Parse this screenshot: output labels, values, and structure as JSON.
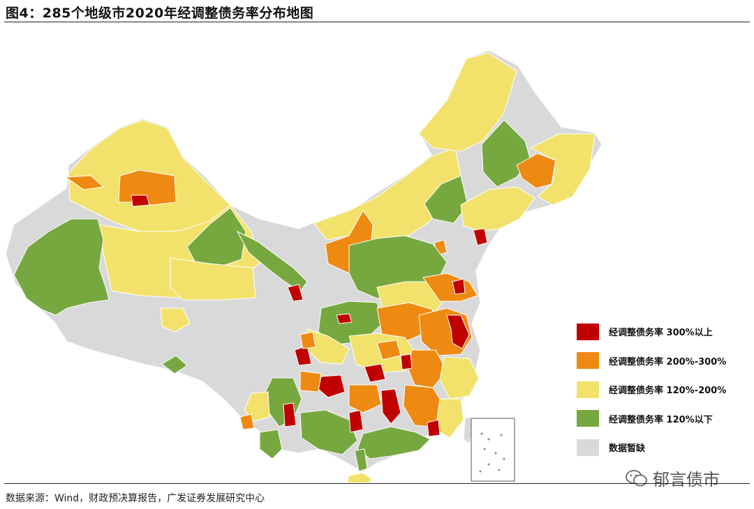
{
  "title": "图4：285个地级市2020年经调整债务率分布地图",
  "legend": [
    {
      "label": "经调整债务率 300%以上",
      "color": "#c00000"
    },
    {
      "label": "经调整债务率 200%-300%",
      "color": "#ee8a12"
    },
    {
      "label": "经调整债务率 120%-200%",
      "color": "#f2e26b"
    },
    {
      "label": "经调整债务率 120%以下",
      "color": "#77a83f"
    },
    {
      "label": "数据暂缺",
      "color": "#d9d9d9"
    }
  ],
  "source": "数据来源：Wind，财政预决算报告，广发证券发展研究中心",
  "watermark": "郁言债市",
  "colors": {
    "missing": "#d9d9d9",
    "over300": "#c00000",
    "r200_300": "#ee8a12",
    "r120_200": "#f2e26b",
    "under120": "#77a83f"
  }
}
